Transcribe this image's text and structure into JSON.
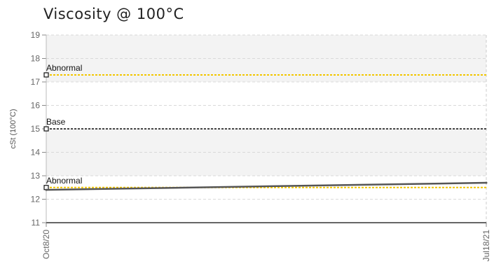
{
  "chart_data": {
    "type": "line",
    "title": "Viscosity @ 100°C",
    "ylabel": "cSt (100°C)",
    "xlabel": "",
    "ylim": [
      11,
      19
    ],
    "yticks": [
      "11",
      "12",
      "13",
      "14",
      "15",
      "16",
      "17",
      "18",
      "19"
    ],
    "x_ticks": [
      "Oct8/20",
      "Jul18/21"
    ],
    "grid": true,
    "series": [
      {
        "x": [
          "Oct8/20",
          "Jul18/21"
        ],
        "values": [
          12.4,
          12.7
        ],
        "color": "#555555"
      }
    ],
    "reference_lines": [
      {
        "label": "Abnormal",
        "value": 17.3,
        "color": "#f2c600"
      },
      {
        "label": "Base",
        "value": 15.0,
        "color": "#444444"
      },
      {
        "label": "Abnormal",
        "value": 12.5,
        "color": "#f2c600"
      }
    ]
  }
}
